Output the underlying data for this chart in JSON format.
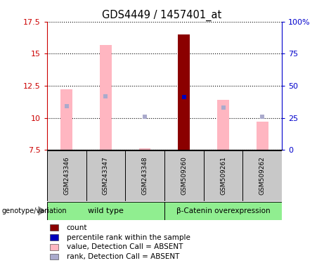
{
  "title": "GDS4449 / 1457401_at",
  "samples": [
    "GSM243346",
    "GSM243347",
    "GSM243348",
    "GSM509260",
    "GSM509261",
    "GSM509262"
  ],
  "ylim_left": [
    7.5,
    17.5
  ],
  "ylim_right": [
    0,
    100
  ],
  "yticks_left": [
    7.5,
    10.0,
    12.5,
    15.0,
    17.5
  ],
  "ytick_labels_left": [
    "7.5",
    "10",
    "12.5",
    "15",
    "17.5"
  ],
  "yticks_right": [
    0,
    25,
    50,
    75,
    100
  ],
  "ytick_labels_right": [
    "0",
    "25",
    "50",
    "75",
    "100%"
  ],
  "pink_bar_values": [
    12.2,
    15.7,
    7.6,
    null,
    11.4,
    9.7
  ],
  "pink_bar_base": 7.5,
  "light_blue_marker_values": [
    10.9,
    11.7,
    10.1,
    null,
    10.8,
    10.1
  ],
  "dark_red_bar_value": 16.5,
  "dark_red_bar_index": 3,
  "blue_marker_value": 11.6,
  "blue_marker_index": 3,
  "bar_width": 0.3,
  "pink_bar_color": "#FFB6C1",
  "light_blue_color": "#AAAACC",
  "dark_red_color": "#8B0000",
  "blue_color": "#0000BB",
  "sample_bg_color": "#C8C8C8",
  "wt_group_color": "#90EE90",
  "bc_group_color": "#90EE90",
  "left_axis_color": "#CC0000",
  "right_axis_color": "#0000CC",
  "legend_items": [
    {
      "color": "#8B0000",
      "label": "count"
    },
    {
      "color": "#0000BB",
      "label": "percentile rank within the sample"
    },
    {
      "color": "#FFB6C1",
      "label": "value, Detection Call = ABSENT"
    },
    {
      "color": "#AAAACC",
      "label": "rank, Detection Call = ABSENT"
    }
  ]
}
